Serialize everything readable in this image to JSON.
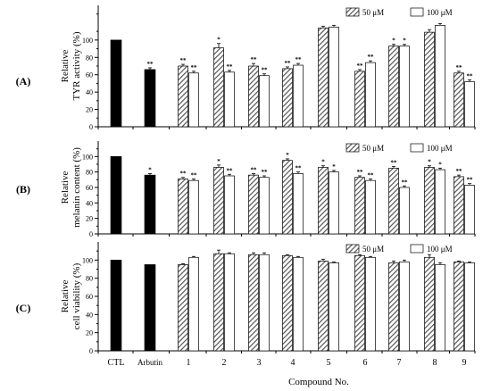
{
  "figure": {
    "xlabel": "Compound No.",
    "categories": [
      "CTL",
      "Arbutin",
      "1",
      "2",
      "3",
      "4",
      "5",
      "6",
      "7",
      "8",
      "9"
    ],
    "legend": {
      "series_50": "50 μM",
      "series_100": "100 μM"
    },
    "colors": {
      "control": "#000000",
      "hatch": "#555555",
      "open": "#ffffff",
      "axis": "#000000"
    }
  },
  "chart_data": [
    {
      "type": "bar",
      "panel": "(A)",
      "ylabel_line1": "Relative",
      "ylabel_line2": "TYR activity (%)",
      "ylim": [
        0,
        140
      ],
      "yticks": [
        "0",
        "20",
        "40",
        "60",
        "80",
        "100"
      ],
      "controls": [
        {
          "category": "CTL",
          "value": 100,
          "err": 0,
          "sig": ""
        },
        {
          "category": "Arbutin",
          "value": 66,
          "err": 2,
          "sig": "**"
        }
      ],
      "compounds": [
        "1",
        "2",
        "3",
        "4",
        "5",
        "6",
        "7",
        "8",
        "9"
      ],
      "series": [
        {
          "name": "50 μM",
          "values": [
            70,
            91,
            70,
            67,
            114,
            64,
            93,
            109,
            62
          ],
          "err": [
            2,
            5,
            3,
            2,
            2,
            2,
            2,
            3,
            2
          ],
          "sig": [
            "**",
            "*",
            "**",
            "**",
            "",
            "**",
            "*",
            "",
            "**"
          ]
        },
        {
          "name": "100 μM",
          "values": [
            62,
            63,
            59,
            71,
            115,
            74,
            93,
            117,
            52
          ],
          "err": [
            2,
            2,
            2,
            2,
            2,
            2,
            2,
            2,
            2
          ],
          "sig": [
            "**",
            "**",
            "**",
            "**",
            "",
            "**",
            "*",
            "",
            "**"
          ]
        }
      ]
    },
    {
      "type": "bar",
      "panel": "(B)",
      "ylabel_line1": "Relative",
      "ylabel_line2": "melanin content (%)",
      "ylim": [
        0,
        120
      ],
      "yticks": [
        "0",
        "20",
        "40",
        "60",
        "80",
        "100"
      ],
      "controls": [
        {
          "category": "CTL",
          "value": 100,
          "err": 0,
          "sig": ""
        },
        {
          "category": "Arbutin",
          "value": 76,
          "err": 2,
          "sig": "*"
        }
      ],
      "compounds": [
        "1",
        "2",
        "3",
        "4",
        "5",
        "6",
        "7",
        "8",
        "9"
      ],
      "series": [
        {
          "name": "50 μM",
          "values": [
            71,
            86,
            76,
            95,
            86,
            73,
            85,
            86,
            74
          ],
          "err": [
            2,
            3,
            2,
            2,
            2,
            2,
            2,
            2,
            2
          ],
          "sig": [
            "**",
            "*",
            "**",
            "*",
            "*",
            "**",
            "**",
            "*",
            "**"
          ]
        },
        {
          "name": "100 μM",
          "values": [
            69,
            75,
            73,
            78,
            80,
            69,
            60,
            83,
            63
          ],
          "err": [
            2,
            2,
            2,
            2,
            2,
            2,
            2,
            2,
            2
          ],
          "sig": [
            "**",
            "**",
            "**",
            "**",
            "*",
            "**",
            "**",
            "*",
            "**"
          ]
        }
      ]
    },
    {
      "type": "bar",
      "panel": "(C)",
      "ylabel_line1": "Relative",
      "ylabel_line2": "cell viability (%)",
      "ylim": [
        0,
        120
      ],
      "yticks": [
        "0",
        "20",
        "40",
        "60",
        "80",
        "100"
      ],
      "controls": [
        {
          "category": "CTL",
          "value": 100,
          "err": 0,
          "sig": ""
        },
        {
          "category": "Arbutin",
          "value": 95,
          "err": 0,
          "sig": ""
        }
      ],
      "compounds": [
        "1",
        "2",
        "3",
        "4",
        "5",
        "6",
        "7",
        "8",
        "9"
      ],
      "series": [
        {
          "name": "50 μM",
          "values": [
            95,
            107,
            106,
            105,
            99,
            105,
            97,
            103,
            98
          ],
          "err": [
            1,
            4,
            2,
            1,
            2,
            1,
            2,
            3,
            1
          ],
          "sig": [
            "",
            "",
            "",
            "",
            "",
            "",
            "",
            "",
            ""
          ]
        },
        {
          "name": "100 μM",
          "values": [
            103,
            107,
            106,
            103,
            97,
            103,
            98,
            95,
            97
          ],
          "err": [
            1,
            1,
            2,
            1,
            1,
            1,
            2,
            2,
            1
          ],
          "sig": [
            "",
            "",
            "",
            "",
            "",
            "",
            "",
            "",
            ""
          ]
        }
      ]
    }
  ]
}
